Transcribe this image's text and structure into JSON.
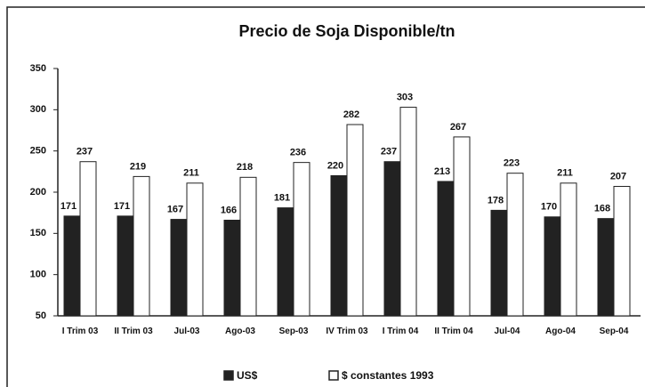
{
  "chart_data": {
    "type": "bar",
    "title": "Precio de Soja Disponible/tn",
    "categories": [
      "I Trim 03",
      "II Trim 03",
      "Jul-03",
      "Ago-03",
      "Sep-03",
      "IV Trim 03",
      "I Trim 04",
      "II Trim 04",
      "Jul-04",
      "Ago-04",
      "Sep-04"
    ],
    "series": [
      {
        "name": "US$",
        "color": "#222222",
        "values": [
          171,
          171,
          167,
          166,
          181,
          220,
          237,
          213,
          178,
          170,
          168
        ]
      },
      {
        "name": "$ constantes 1993",
        "color": "#ffffff",
        "values": [
          237,
          219,
          211,
          218,
          236,
          282,
          303,
          267,
          223,
          211,
          207
        ]
      }
    ],
    "ylim": [
      50,
      350
    ],
    "yticks": [
      50,
      100,
      150,
      200,
      250,
      300,
      350
    ],
    "grid": false,
    "legend": "bottom"
  }
}
